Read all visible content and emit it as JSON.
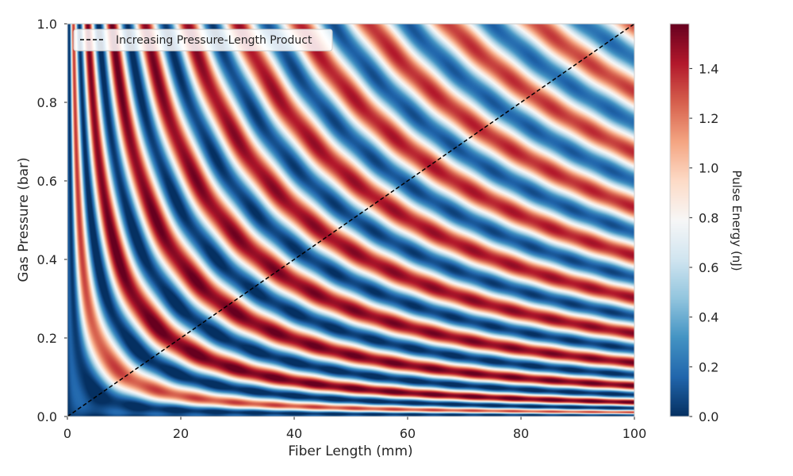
{
  "chart_data": {
    "type": "heatmap",
    "title": "",
    "xlabel": "Fiber Length (mm)",
    "ylabel": "Gas Pressure (bar)",
    "xlim": [
      0,
      100
    ],
    "ylim": [
      0,
      1.0
    ],
    "xticks": [
      0,
      20,
      40,
      60,
      80,
      100
    ],
    "xtick_labels": [
      "0",
      "20",
      "40",
      "60",
      "80",
      "100"
    ],
    "yticks": [
      0.0,
      0.2,
      0.4,
      0.6,
      0.8,
      1.0
    ],
    "ytick_labels": [
      "0.0",
      "0.2",
      "0.4",
      "0.6",
      "0.8",
      "1.0"
    ],
    "colormap": "RdBu_r",
    "colorbar": {
      "label": "Pulse Energy (nJ)",
      "range": [
        0,
        1.58
      ],
      "ticks": [
        0.0,
        0.2,
        0.4,
        0.6,
        0.8,
        1.0,
        1.2,
        1.4
      ],
      "tick_labels": [
        "0.0",
        "0.2",
        "0.4",
        "0.6",
        "0.8",
        "1.0",
        "1.2",
        "1.4"
      ]
    },
    "z_model": {
      "description": "energy oscillates with pressure-length product u = P*L; bands along hyperbolas",
      "band_u_values": [
        1.0,
        3.2,
        6.8,
        11.6,
        17.6,
        24.8,
        33.2,
        42.8,
        53.6,
        65.6,
        78.8
      ],
      "low_u_region_max_energy": 0.0
    },
    "series": [
      {
        "name": "Increasing Pressure-Length Product",
        "style": "dashed",
        "color": "#000000",
        "x": [
          0,
          100
        ],
        "y": [
          0.0,
          1.0
        ]
      }
    ],
    "legend": {
      "position": "top-left"
    },
    "grid": false
  }
}
